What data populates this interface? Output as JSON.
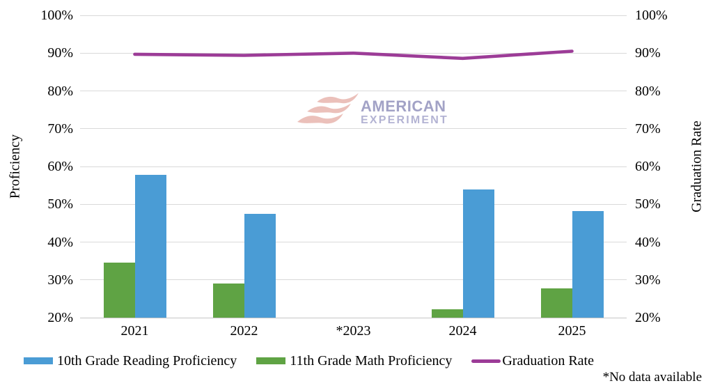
{
  "chart_data": {
    "type": "combo-bar-line",
    "categories": [
      "2021",
      "2022",
      "*2023",
      "2024",
      "2025"
    ],
    "left_axis": {
      "title": "Proficiency",
      "min": 20,
      "max": 100,
      "step": 10,
      "tick_suffix": "%"
    },
    "right_axis": {
      "title": "Graduation Rate",
      "min": 20,
      "max": 100,
      "step": 10,
      "tick_suffix": "%"
    },
    "grid": true,
    "bar_series": [
      {
        "name": "11th Grade Math Proficiency",
        "color": "#5FA344",
        "axis": "left",
        "values": [
          34.5,
          29.1,
          null,
          22.2,
          27.8
        ]
      },
      {
        "name": "10th Grade Reading Proficiency",
        "color": "#4A9CD5",
        "axis": "left",
        "values": [
          57.7,
          47.4,
          null,
          53.9,
          48.2
        ]
      }
    ],
    "line_series": [
      {
        "name": "Graduation Rate",
        "color": "#9C3C97",
        "axis": "right",
        "values": [
          89.7,
          89.4,
          90.0,
          88.6,
          90.5
        ]
      }
    ],
    "legend": [
      {
        "label": "10th Grade Reading Proficiency",
        "swatch": "bar",
        "color": "#4A9CD5"
      },
      {
        "label": "11th Grade Math Proficiency",
        "swatch": "bar",
        "color": "#5FA344"
      },
      {
        "label": "Graduation Rate",
        "swatch": "line",
        "color": "#9C3C97"
      }
    ],
    "footnote": "*No data available",
    "note_meaning": "2023 category marked with asterisk; no proficiency bars shown"
  },
  "watermark": {
    "line1": "AMERICAN",
    "line2": "EXPERIMENT",
    "logo": "waves-flag-logo",
    "logo_color": "#E3A89F",
    "text_color": "#9292BC"
  }
}
